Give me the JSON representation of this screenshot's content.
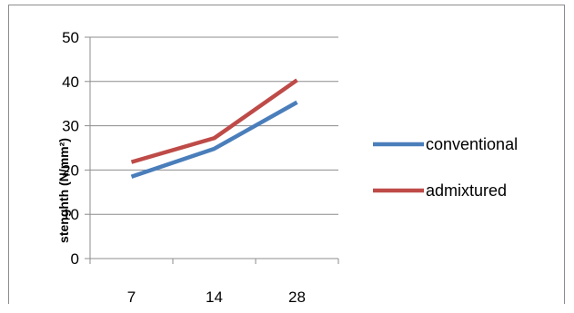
{
  "chart_data": {
    "type": "line",
    "title": "",
    "xlabel": "",
    "ylabel": "stenghth (N/mm²)",
    "categories": [
      "7",
      "14",
      "28"
    ],
    "ylim": [
      0,
      50
    ],
    "yticks": [
      0,
      10,
      20,
      30,
      40,
      50
    ],
    "grid": true,
    "legend_position": "right",
    "series": [
      {
        "name": "conventional",
        "color": "#4a7ebb",
        "values": [
          18.5,
          24.8,
          35.3
        ]
      },
      {
        "name": "admixtured",
        "color": "#be4b48",
        "values": [
          21.8,
          27.2,
          40.3
        ]
      }
    ]
  }
}
